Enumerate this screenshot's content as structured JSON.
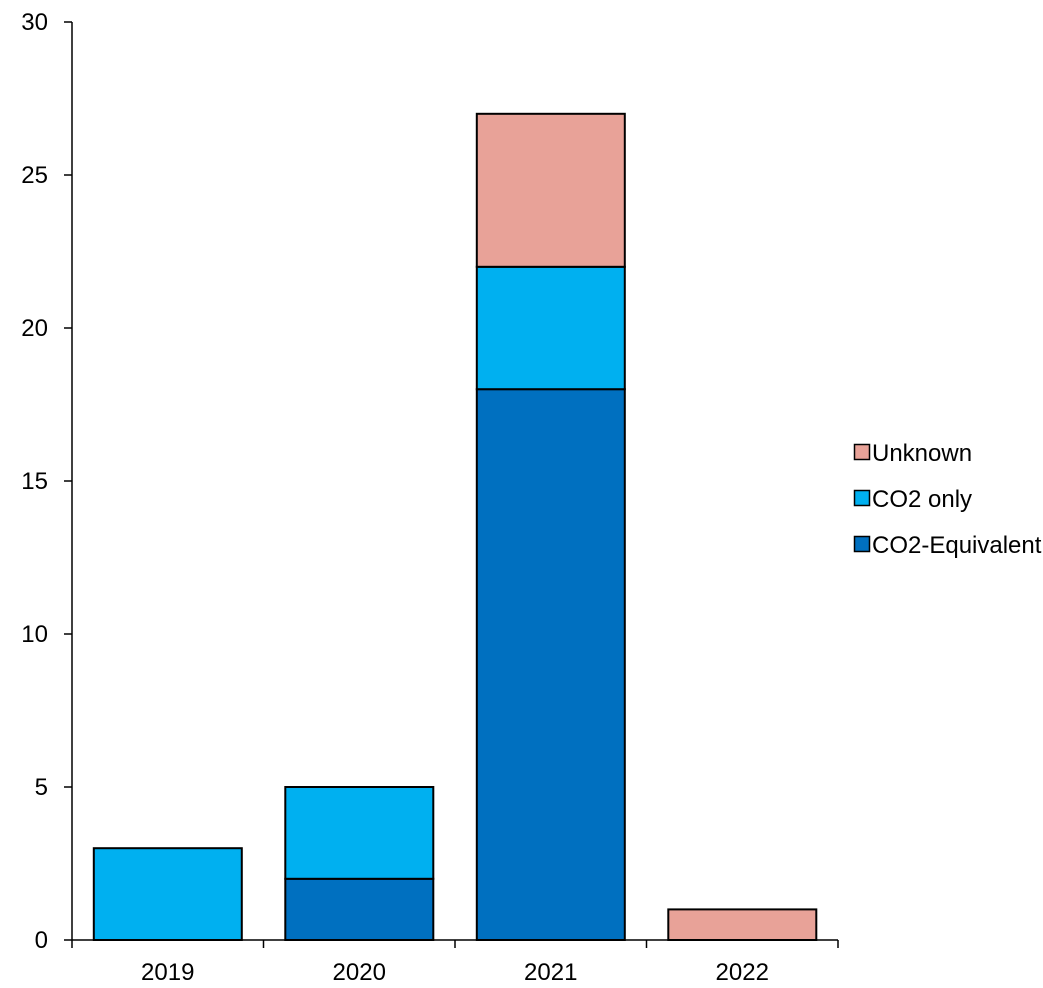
{
  "chart_data": {
    "type": "bar",
    "stacked": true,
    "categories": [
      "2019",
      "2020",
      "2021",
      "2022"
    ],
    "series": [
      {
        "name": "CO2-Equivalent",
        "values": [
          0,
          2,
          18,
          0
        ],
        "color": "#0070C0"
      },
      {
        "name": "CO2 only",
        "values": [
          3,
          3,
          4,
          0
        ],
        "color": "#00B0F0"
      },
      {
        "name": "Unknown",
        "values": [
          0,
          0,
          5,
          1
        ],
        "color": "#E8A298"
      }
    ],
    "title": "",
    "xlabel": "",
    "ylabel": "",
    "ylim": [
      0,
      30
    ],
    "yticks": [
      0,
      5,
      10,
      15,
      20,
      25,
      30
    ],
    "grid": false,
    "legend_position": "right",
    "legend_order": [
      "Unknown",
      "CO2 only",
      "CO2-Equivalent"
    ]
  }
}
